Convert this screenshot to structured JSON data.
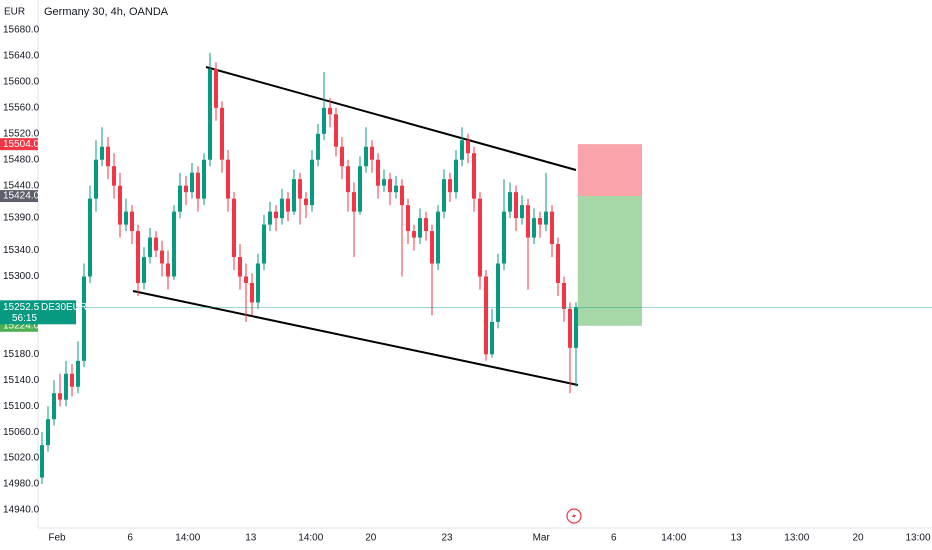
{
  "chart_data": {
    "type": "candlestick",
    "title": "Germany 30, 4h, OANDA",
    "currency": "EUR",
    "up_color": "#089981",
    "down_color": "#f23645",
    "grid": false,
    "ylim": [
      14940,
      15680
    ],
    "yticks": [
      {
        "value": 15680,
        "label": "15680.0"
      },
      {
        "value": 15640,
        "label": "15640.0"
      },
      {
        "value": 15600,
        "label": "15600.0"
      },
      {
        "value": 15560,
        "label": "15560.0"
      },
      {
        "value": 15520,
        "label": "15520.0"
      },
      {
        "value": 15480,
        "label": "15480.0"
      },
      {
        "value": 15440,
        "label": "15440.0"
      },
      {
        "value": 15390,
        "label": "15390.0"
      },
      {
        "value": 15340,
        "label": "15340.0"
      },
      {
        "value": 15300,
        "label": "15300.0"
      },
      {
        "value": 15180,
        "label": "15180.0"
      },
      {
        "value": 15140,
        "label": "15140.0"
      },
      {
        "value": 15100,
        "label": "15100.0"
      },
      {
        "value": 15060,
        "label": "15060.0"
      },
      {
        "value": 15020,
        "label": "15020.0"
      },
      {
        "value": 14980,
        "label": "14980.0"
      },
      {
        "value": 14940,
        "label": "14940.0"
      }
    ],
    "xlim": [
      -2,
      148
    ],
    "xticks": [
      {
        "value": 2.5,
        "label": "Feb"
      },
      {
        "value": 14.7,
        "label": "6"
      },
      {
        "value": 24.3,
        "label": "14:00"
      },
      {
        "value": 34.8,
        "label": "13"
      },
      {
        "value": 44.8,
        "label": "14:00"
      },
      {
        "value": 54.8,
        "label": "20"
      },
      {
        "value": 67.5,
        "label": "23"
      },
      {
        "value": 83.2,
        "label": "Mar"
      },
      {
        "value": 95.3,
        "label": "6"
      },
      {
        "value": 105.3,
        "label": "14:00"
      },
      {
        "value": 115.7,
        "label": "13"
      },
      {
        "value": 125.8,
        "label": "13:00"
      },
      {
        "value": 136,
        "label": "20"
      },
      {
        "value": 146,
        "label": "13:00"
      }
    ],
    "candles": [
      [
        14990,
        15060,
        14980,
        15040
      ],
      [
        15040,
        15100,
        15030,
        15080
      ],
      [
        15080,
        15140,
        15070,
        15120
      ],
      [
        15120,
        15150,
        15100,
        15110
      ],
      [
        15110,
        15170,
        15100,
        15150
      ],
      [
        15150,
        15165,
        15115,
        15130
      ],
      [
        15130,
        15200,
        15120,
        15170
      ],
      [
        15170,
        15320,
        15160,
        15300
      ],
      [
        15300,
        15440,
        15290,
        15420
      ],
      [
        15420,
        15510,
        15400,
        15480
      ],
      [
        15480,
        15530,
        15470,
        15500
      ],
      [
        15500,
        15515,
        15450,
        15470
      ],
      [
        15470,
        15490,
        15420,
        15440
      ],
      [
        15440,
        15460,
        15360,
        15380
      ],
      [
        15380,
        15420,
        15370,
        15400
      ],
      [
        15400,
        15410,
        15350,
        15370
      ],
      [
        15370,
        15380,
        15270,
        15290
      ],
      [
        15290,
        15345,
        15280,
        15330
      ],
      [
        15330,
        15375,
        15320,
        15360
      ],
      [
        15360,
        15370,
        15330,
        15340
      ],
      [
        15340,
        15355,
        15300,
        15320
      ],
      [
        15320,
        15340,
        15280,
        15300
      ],
      [
        15300,
        15410,
        15295,
        15400
      ],
      [
        15400,
        15460,
        15390,
        15440
      ],
      [
        15440,
        15455,
        15410,
        15430
      ],
      [
        15430,
        15475,
        15420,
        15460
      ],
      [
        15460,
        15470,
        15400,
        15420
      ],
      [
        15420,
        15490,
        15410,
        15480
      ],
      [
        15480,
        15645,
        15470,
        15620
      ],
      [
        15620,
        15630,
        15540,
        15560
      ],
      [
        15560,
        15570,
        15460,
        15480
      ],
      [
        15480,
        15495,
        15400,
        15420
      ],
      [
        15420,
        15430,
        15310,
        15330
      ],
      [
        15330,
        15350,
        15280,
        15300
      ],
      [
        15300,
        15320,
        15230,
        15290
      ],
      [
        15290,
        15305,
        15240,
        15260
      ],
      [
        15260,
        15335,
        15250,
        15320
      ],
      [
        15320,
        15395,
        15310,
        15380
      ],
      [
        15380,
        15415,
        15370,
        15400
      ],
      [
        15400,
        15410,
        15370,
        15390
      ],
      [
        15390,
        15435,
        15380,
        15420
      ],
      [
        15420,
        15430,
        15385,
        15400
      ],
      [
        15400,
        15465,
        15395,
        15450
      ],
      [
        15450,
        15460,
        15380,
        15420
      ],
      [
        15420,
        15430,
        15390,
        15410
      ],
      [
        15410,
        15495,
        15400,
        15480
      ],
      [
        15480,
        15535,
        15470,
        15520
      ],
      [
        15520,
        15615,
        15510,
        15560
      ],
      [
        15560,
        15575,
        15530,
        15550
      ],
      [
        15550,
        15560,
        15485,
        15500
      ],
      [
        15500,
        15515,
        15450,
        15470
      ],
      [
        15470,
        15480,
        15400,
        15430
      ],
      [
        15430,
        15445,
        15330,
        15400
      ],
      [
        15400,
        15485,
        15395,
        15470
      ],
      [
        15470,
        15530,
        15460,
        15500
      ],
      [
        15500,
        15510,
        15460,
        15480
      ],
      [
        15480,
        15490,
        15420,
        15440
      ],
      [
        15440,
        15465,
        15430,
        15450
      ],
      [
        15450,
        15460,
        15410,
        15430
      ],
      [
        15430,
        15455,
        15420,
        15440
      ],
      [
        15440,
        15450,
        15300,
        15410
      ],
      [
        15410,
        15420,
        15350,
        15370
      ],
      [
        15370,
        15380,
        15340,
        15360
      ],
      [
        15360,
        15405,
        15350,
        15390
      ],
      [
        15390,
        15400,
        15355,
        15370
      ],
      [
        15370,
        15380,
        15240,
        15320
      ],
      [
        15320,
        15410,
        15310,
        15400
      ],
      [
        15400,
        15465,
        15390,
        15450
      ],
      [
        15450,
        15460,
        15415,
        15430
      ],
      [
        15430,
        15495,
        15420,
        15480
      ],
      [
        15480,
        15530,
        15470,
        15510
      ],
      [
        15510,
        15520,
        15475,
        15490
      ],
      [
        15490,
        15500,
        15400,
        15420
      ],
      [
        15420,
        15430,
        15280,
        15300
      ],
      [
        15300,
        15310,
        15170,
        15180
      ],
      [
        15180,
        15250,
        15175,
        15230
      ],
      [
        15230,
        15335,
        15220,
        15320
      ],
      [
        15320,
        15450,
        15310,
        15400
      ],
      [
        15400,
        15445,
        15390,
        15430
      ],
      [
        15430,
        15440,
        15370,
        15390
      ],
      [
        15390,
        15425,
        15380,
        15410
      ],
      [
        15410,
        15420,
        15280,
        15360
      ],
      [
        15360,
        15405,
        15350,
        15390
      ],
      [
        15390,
        15400,
        15360,
        15380
      ],
      [
        15380,
        15460,
        15370,
        15400
      ],
      [
        15400,
        15410,
        15330,
        15350
      ],
      [
        15350,
        15360,
        15270,
        15290
      ],
      [
        15290,
        15300,
        15230,
        15250
      ],
      [
        15250,
        15260,
        15120,
        15190
      ],
      [
        15190,
        15260,
        15130,
        15252.5
      ]
    ],
    "position": {
      "stop": 15504,
      "stop_label": "15504.0",
      "stop_color": "#f23645",
      "entry": 15424,
      "entry_label": "15424.0",
      "entry_color": "#5d606b",
      "target": 15224,
      "target_label": "15224.0",
      "target_color": "#4caf50",
      "start": 89.3,
      "end": 100
    },
    "last_price": 15252.5,
    "symbol": "DE30EUR",
    "countdown": "56:15",
    "last_color": "#089981"
  }
}
